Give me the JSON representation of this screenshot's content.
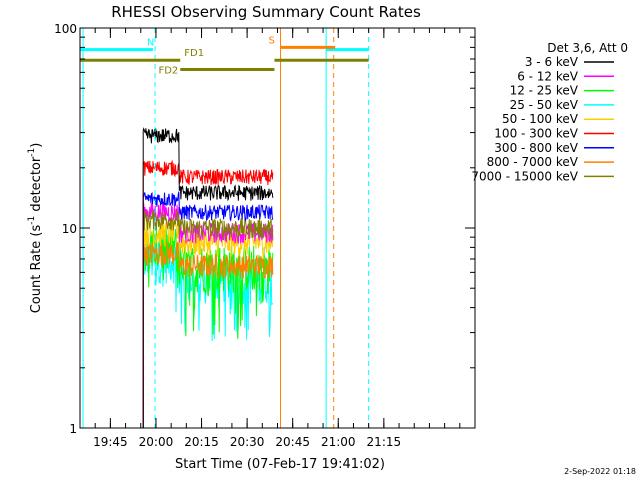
{
  "chart_data": {
    "type": "line",
    "title": "RHESSI Observing Summary Count Rates",
    "xlabel": "Start Time (07-Feb-17 19:41:02)",
    "ylabel_main": "Count Rate (s",
    "ylabel_sup1": "-1",
    "ylabel_mid": " detector",
    "ylabel_sup2": "-1",
    "ylabel_end": ")",
    "y_scale": "log",
    "ylim": [
      1,
      100
    ],
    "xlim_minutes": [
      -25,
      105
    ],
    "x_ticks": [
      {
        "label": "19:45",
        "minutes": -15
      },
      {
        "label": "20:00",
        "minutes": 0
      },
      {
        "label": "20:15",
        "minutes": 15
      },
      {
        "label": "20:30",
        "minutes": 30
      },
      {
        "label": "20:45",
        "minutes": 45
      },
      {
        "label": "21:00",
        "minutes": 60
      },
      {
        "label": "21:15",
        "minutes": 75
      }
    ],
    "y_ticks": [
      {
        "label": "1",
        "value": 1
      },
      {
        "label": "10",
        "value": 10
      },
      {
        "label": "100",
        "value": 100
      }
    ],
    "legend_title": "Det 3,6, Att 0",
    "legend_position": "right",
    "series": [
      {
        "name": "3 - 6 keV",
        "color": "#000000",
        "level1": 29,
        "level2": 15,
        "noise": 0.09
      },
      {
        "name": "6 - 12 keV",
        "color": "#ff00ff",
        "level1": 12,
        "level2": 9.5,
        "noise": 0.12
      },
      {
        "name": "12 - 25 keV",
        "color": "#00ff00",
        "level1": 8,
        "level2": 6.5,
        "noise": 0.28
      },
      {
        "name": "25 - 50 keV",
        "color": "#00ffff",
        "level1": 7,
        "level2": 5.5,
        "noise": 0.25
      },
      {
        "name": "50 - 100 keV",
        "color": "#ffcc00",
        "level1": 9.5,
        "level2": 8.5,
        "noise": 0.16
      },
      {
        "name": "100 - 300 keV",
        "color": "#ff0000",
        "level1": 20,
        "level2": 18,
        "noise": 0.09
      },
      {
        "name": "300 - 800 keV",
        "color": "#0000ff",
        "level1": 14,
        "level2": 12,
        "noise": 0.09
      },
      {
        "name": "800 - 7000 keV",
        "color": "#ff7f00",
        "level1": 7.5,
        "level2": 6.5,
        "noise": 0.14
      },
      {
        "name": "7000 - 15000 keV",
        "color": "#808000",
        "level1": 11,
        "level2": 10,
        "noise": 0.12
      }
    ],
    "data_interval_minutes": [
      -4.2,
      38.5
    ],
    "level_change_minutes": 7.5,
    "flags": [
      {
        "label": "N",
        "color": "#00ffff",
        "segments": [
          [
            -25,
            -1
          ],
          [
            56,
            70
          ]
        ],
        "value": 78
      },
      {
        "label": "S",
        "color": "#ff7f00",
        "segments": [
          [
            41,
            59
          ]
        ],
        "value": 80
      },
      {
        "label": "FD1",
        "color": "#808000",
        "segments": [
          [
            -25,
            8
          ],
          [
            39,
            70
          ]
        ],
        "value": 69
      },
      {
        "label": "FD2",
        "color": "#808000",
        "segments": [
          [
            8,
            39
          ]
        ],
        "value": 62
      }
    ],
    "vertical_lines": [
      {
        "minutes": -24,
        "color": "#00ffff",
        "style": "solid"
      },
      {
        "minutes": -0.3,
        "color": "#00ffff",
        "style": "dashed"
      },
      {
        "minutes": 41,
        "color": "#ff7f00",
        "style": "solid"
      },
      {
        "minutes": 56,
        "color": "#00ffff",
        "style": "solid"
      },
      {
        "minutes": 58.5,
        "color": "#ff7f00",
        "style": "dashed"
      },
      {
        "minutes": 70,
        "color": "#00ffff",
        "style": "dashed"
      }
    ]
  },
  "footer": {
    "timestamp": "2-Sep-2022 01:18"
  }
}
